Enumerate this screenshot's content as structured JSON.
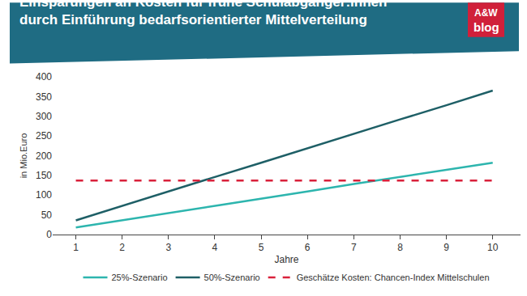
{
  "chart_data": {
    "type": "line",
    "title": "Einsparungen an Kosten für frühe Schulabgänger:innen durch Einführung bedarfsorientierter Mittelverteilung",
    "annotations": [
      "A&W",
      "blog"
    ],
    "x_label": "Jahre",
    "y_label": "in Mio.Euro",
    "x": [
      1,
      2,
      3,
      4,
      5,
      6,
      7,
      8,
      9,
      10
    ],
    "series": [
      {
        "name": "25%-Szenario",
        "color": "#2db5ae",
        "line_style": "solid",
        "values": [
          18,
          36,
          55,
          73,
          91,
          109,
          128,
          146,
          164,
          182
        ]
      },
      {
        "name": "50%-Szenario",
        "color": "#1e5f66",
        "line_style": "solid",
        "values": [
          36,
          73,
          109,
          146,
          182,
          219,
          255,
          292,
          328,
          365
        ]
      },
      {
        "name": "Geschätze Kosten: Chancen-Index Mittelschulen",
        "color": "#d9213b",
        "line_style": "dash",
        "values": [
          137,
          137,
          137,
          137,
          137,
          137,
          137,
          137,
          137,
          137
        ]
      }
    ],
    "xlim": [
      0.5,
      10.6
    ],
    "xticks": [
      1,
      2,
      3,
      4,
      5,
      6,
      7,
      8,
      9,
      10
    ],
    "ylim": [
      0,
      400
    ],
    "yticks": [
      0,
      50,
      100,
      150,
      200,
      250,
      300,
      350,
      400
    ],
    "grid": false,
    "legend": "bottom"
  }
}
